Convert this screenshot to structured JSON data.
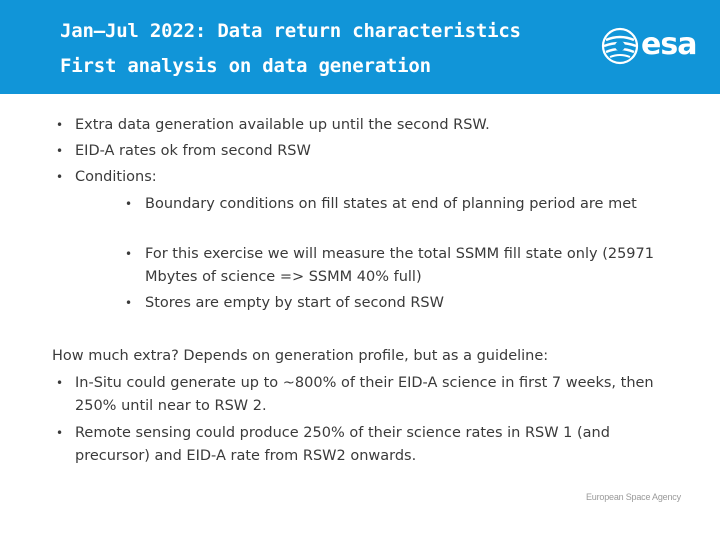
{
  "header": {
    "title_line1": "Jan–Jul 2022: Data return characteristics",
    "title_line2": "First analysis on data generation",
    "logo_text": "esa",
    "logo_icon": "esa-swirl-logo-icon",
    "bg_color": "#1195d8"
  },
  "bullets_top": [
    "Extra data generation available up until the second RSW.",
    "EID-A rates ok from second RSW",
    "Conditions:"
  ],
  "sub_bullets": [
    "Boundary conditions on fill states at end of planning period are met",
    "For this exercise we will measure the total SSMM fill state only (25971 Mbytes of science => SSMM 40% full)",
    "Stores are empty by start of second RSW"
  ],
  "intro_text": "How much extra? Depends on generation profile, but as a guideline:",
  "bullets_bottom": [
    "In-Situ could generate up to ~800% of their EID-A science in first 7 weeks, then 250% until near to RSW 2.",
    "Remote sensing could produce 250% of their science rates in RSW 1 (and precursor) and EID-A rate from RSW2 onwards."
  ],
  "footer": "European Space Agency",
  "bullet_glyph": "•"
}
